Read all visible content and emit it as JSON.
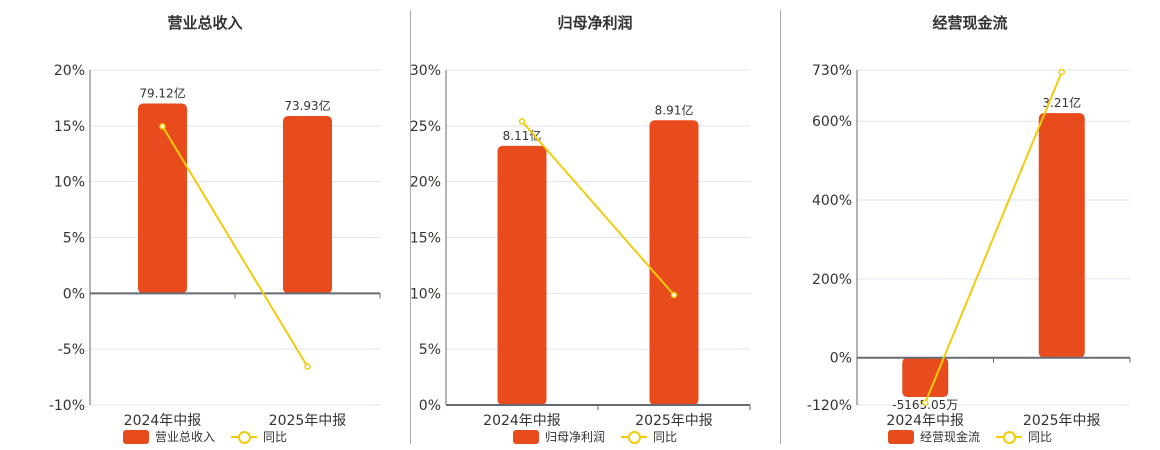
{
  "colors": {
    "bar": "#e84c1c",
    "line": "#f2cc0c",
    "grid": "#dde3ef",
    "axis": "#666a73"
  },
  "chart_data": [
    {
      "type": "bar+line",
      "title": "营业总收入",
      "categories": [
        "2024年中报",
        "2025年中报"
      ],
      "bar_series": {
        "name": "营业总收入",
        "unit": "亿",
        "values": [
          79.12,
          73.93
        ],
        "labels": [
          "79.12亿",
          "73.93亿"
        ]
      },
      "line_series": {
        "name": "同比",
        "unit": "%",
        "values": [
          14.95,
          -6.56
        ]
      },
      "y_ticks": [
        "20%",
        "15%",
        "10%",
        "5%",
        "0%",
        "-5%",
        "-10%"
      ],
      "y_tick_values": [
        20,
        15,
        10,
        5,
        0,
        -5,
        -10
      ],
      "ylim": [
        -10,
        20
      ],
      "grid": true,
      "legend": "bottom"
    },
    {
      "type": "bar+line",
      "title": "归母净利润",
      "categories": [
        "2024年中报",
        "2025年中报"
      ],
      "bar_series": {
        "name": "归母净利润",
        "unit": "亿",
        "values": [
          8.11,
          8.91
        ],
        "labels": [
          "8.11亿",
          "8.91亿"
        ]
      },
      "line_series": {
        "name": "同比",
        "unit": "%",
        "values": [
          25.4,
          9.85
        ]
      },
      "y_ticks": [
        "30%",
        "25%",
        "20%",
        "15%",
        "10%",
        "5%",
        "0%"
      ],
      "y_tick_values": [
        30,
        25,
        20,
        15,
        10,
        5,
        0
      ],
      "ylim": [
        0,
        30
      ],
      "grid": true,
      "legend": "bottom"
    },
    {
      "type": "bar+line",
      "title": "经营现金流",
      "categories": [
        "2024年中报",
        "2025年中报"
      ],
      "bar_series": {
        "name": "经营现金流",
        "unit": "亿",
        "values": [
          -0.516505,
          3.21
        ],
        "labels": [
          "-5165.05万",
          "3.21亿"
        ]
      },
      "line_series": {
        "name": "同比",
        "unit": "%",
        "values": [
          -114,
          725
        ]
      },
      "y_ticks": [
        "730%",
        "600%",
        "400%",
        "200%",
        "0%",
        "-120%"
      ],
      "y_tick_values": [
        730,
        600,
        400,
        200,
        0,
        -120
      ],
      "ylim": [
        -120,
        730
      ],
      "grid": true,
      "legend": "bottom"
    }
  ]
}
